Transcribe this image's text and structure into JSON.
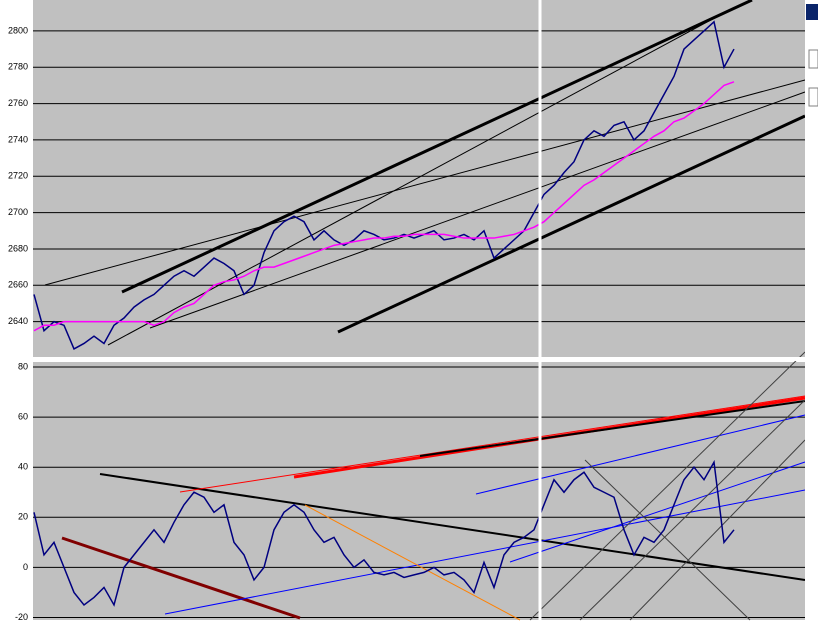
{
  "chart_data": [
    {
      "type": "line",
      "ylim": [
        2620,
        2817
      ],
      "yticks": [
        2640,
        2660,
        2680,
        2700,
        2720,
        2740,
        2760,
        2780,
        2800
      ],
      "grid": true,
      "series": [
        {
          "color": "#000080",
          "values": [
            2655,
            2635,
            2640,
            2638,
            2625,
            2628,
            2632,
            2628,
            2638,
            2642,
            2648,
            2652,
            2655,
            2660,
            2665,
            2668,
            2665,
            2670,
            2675,
            2672,
            2668,
            2655,
            2660,
            2678,
            2690,
            2695,
            2698,
            2695,
            2685,
            2690,
            2685,
            2682,
            2685,
            2690,
            2688,
            2685,
            2686,
            2688,
            2686,
            2688,
            2690,
            2685,
            2686,
            2688,
            2685,
            2690,
            2675,
            2680,
            2685,
            2690,
            2700,
            2710,
            2715,
            2722,
            2728,
            2740,
            2745,
            2742,
            2748,
            2750,
            2740,
            2745,
            2755,
            2765,
            2775,
            2790,
            2795,
            2800,
            2805,
            2780,
            2790
          ]
        },
        {
          "color": "#ff00ff",
          "values": [
            2635,
            2638,
            2638,
            2640,
            2640,
            2640,
            2640,
            2640,
            2640,
            2640,
            2640,
            2640,
            2638,
            2640,
            2645,
            2648,
            2650,
            2655,
            2660,
            2662,
            2663,
            2665,
            2668,
            2670,
            2670,
            2672,
            2674,
            2676,
            2678,
            2680,
            2682,
            2683,
            2684,
            2685,
            2686,
            2686,
            2687,
            2687,
            2688,
            2688,
            2688,
            2688,
            2687,
            2686,
            2686,
            2686,
            2686,
            2687,
            2688,
            2690,
            2692,
            2695,
            2700,
            2705,
            2710,
            2715,
            2718,
            2722,
            2726,
            2730,
            2734,
            2738,
            2742,
            2745,
            2750,
            2752,
            2756,
            2760,
            2765,
            2770,
            2772
          ]
        }
      ]
    },
    {
      "type": "line",
      "ylim": [
        -21,
        82
      ],
      "yticks": [
        -20,
        0,
        20,
        40,
        60,
        80
      ],
      "grid": true,
      "series": [
        {
          "color": "#000080",
          "values": [
            22,
            5,
            10,
            0,
            -10,
            -15,
            -12,
            -8,
            -15,
            0,
            5,
            10,
            15,
            10,
            18,
            25,
            30,
            28,
            22,
            25,
            10,
            5,
            -5,
            0,
            15,
            22,
            25,
            22,
            15,
            10,
            12,
            5,
            0,
            3,
            -2,
            -3,
            -2,
            -4,
            -3,
            -2,
            0,
            -3,
            -2,
            -5,
            -10,
            2,
            -8,
            5,
            10,
            12,
            15,
            25,
            35,
            30,
            35,
            38,
            32,
            30,
            28,
            15,
            5,
            12,
            10,
            15,
            25,
            35,
            40,
            35,
            42,
            10,
            15
          ]
        }
      ]
    }
  ]
}
